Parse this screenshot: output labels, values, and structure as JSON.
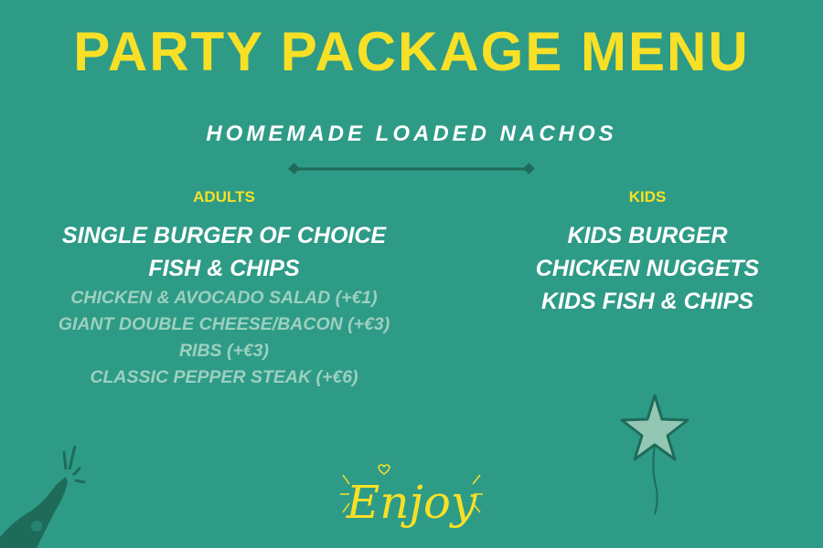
{
  "title": "PARTY PACKAGE MENU",
  "subtitle": "HOMEMADE LOADED NACHOS",
  "adults": {
    "label": "ADULTS",
    "items": [
      "SINGLE BURGER OF CHOICE",
      "FISH & CHIPS"
    ],
    "upgrades": [
      "CHICKEN & AVOCADO SALAD (+€1)",
      "GIANT DOUBLE CHEESE/BACON (+€3)",
      "RIBS (+€3)",
      "CLASSIC PEPPER STEAK (+€6)"
    ]
  },
  "kids": {
    "label": "KIDS",
    "items": [
      "KIDS BURGER",
      "CHICKEN NUGGETS",
      "KIDS FISH & CHIPS"
    ]
  },
  "footer": {
    "enjoy": "Enjoy"
  },
  "icons": [
    "champagne-bottle-icon",
    "star-balloon-icon",
    "heart-icon"
  ],
  "colors": {
    "background": "#2e9b87",
    "accent_yellow": "#f8e026",
    "dark_green": "#1f6b5a",
    "muted_text": "#9dd0bf"
  }
}
